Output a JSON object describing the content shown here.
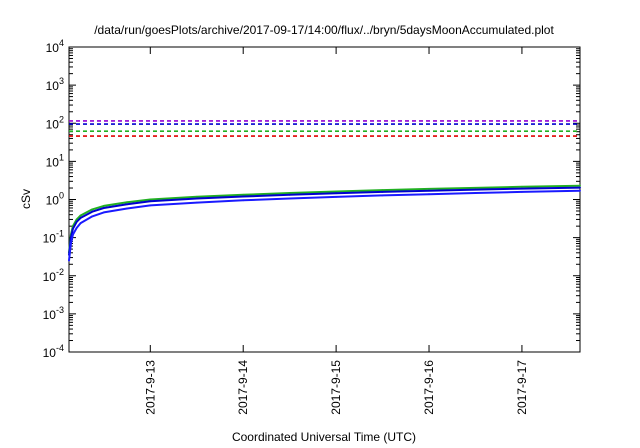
{
  "chart_data": {
    "type": "line",
    "title": "/data/run/goesPlots/archive/2017-09-17/14:00/flux/../bryn/5daysMoonAccumulated.plot",
    "xlabel": "Coordinated Universal Time (UTC)",
    "ylabel": "cSv",
    "x_scale": "time",
    "x_range": [
      "2017-09-12 03:00",
      "2017-09-17 15:00"
    ],
    "x_ticks": [
      "2017-9-13",
      "2017-9-14",
      "2017-9-15",
      "2017-9-16",
      "2017-9-17"
    ],
    "y_scale": "log",
    "ylim": [
      0.0001,
      10000
    ],
    "y_ticks": [
      {
        "mant": "10",
        "exp": "-4",
        "value": 0.0001
      },
      {
        "mant": "10",
        "exp": "-3",
        "value": 0.001
      },
      {
        "mant": "10",
        "exp": "-2",
        "value": 0.01
      },
      {
        "mant": "10",
        "exp": "-1",
        "value": 0.1
      },
      {
        "mant": "10",
        "exp": "0",
        "value": 1
      },
      {
        "mant": "10",
        "exp": "1",
        "value": 10
      },
      {
        "mant": "10",
        "exp": "2",
        "value": 100
      },
      {
        "mant": "10",
        "exp": "3",
        "value": 1000
      },
      {
        "mant": "10",
        "exp": "4",
        "value": 10000
      }
    ],
    "grid": false,
    "legend": "none",
    "reference_lines": [
      {
        "color": "#9400d3",
        "dashed": true,
        "y": 115
      },
      {
        "color": "#0000cd",
        "dashed": true,
        "y": 95
      },
      {
        "color": "#22b022",
        "dashed": true,
        "y": 62
      },
      {
        "color": "#e00000",
        "dashed": true,
        "y": 46
      }
    ],
    "series": [
      {
        "color": "#22b022",
        "x": [
          "2017-09-12 03:00",
          "2017-09-12 03:30",
          "2017-09-12 04:00",
          "2017-09-12 05:00",
          "2017-09-12 06:00",
          "2017-09-12 09:00",
          "2017-09-12 12:00",
          "2017-09-12 18:00",
          "2017-09-13 00:00",
          "2017-09-13 12:00",
          "2017-09-14 00:00",
          "2017-09-14 12:00",
          "2017-09-15 00:00",
          "2017-09-15 12:00",
          "2017-09-16 00:00",
          "2017-09-16 12:00",
          "2017-09-17 00:00",
          "2017-09-17 15:00"
        ],
        "values": [
          0.04,
          0.12,
          0.2,
          0.3,
          0.38,
          0.55,
          0.68,
          0.85,
          1.0,
          1.18,
          1.33,
          1.48,
          1.62,
          1.76,
          1.9,
          2.02,
          2.15,
          2.3
        ]
      },
      {
        "color": "#0000cd",
        "x": [
          "2017-09-12 03:00",
          "2017-09-12 03:30",
          "2017-09-12 04:00",
          "2017-09-12 05:00",
          "2017-09-12 06:00",
          "2017-09-12 09:00",
          "2017-09-12 12:00",
          "2017-09-12 18:00",
          "2017-09-13 00:00",
          "2017-09-13 12:00",
          "2017-09-14 00:00",
          "2017-09-14 12:00",
          "2017-09-15 00:00",
          "2017-09-15 12:00",
          "2017-09-16 00:00",
          "2017-09-16 12:00",
          "2017-09-17 00:00",
          "2017-09-17 15:00"
        ],
        "values": [
          0.035,
          0.1,
          0.17,
          0.26,
          0.33,
          0.48,
          0.6,
          0.75,
          0.9,
          1.06,
          1.2,
          1.33,
          1.46,
          1.58,
          1.7,
          1.82,
          1.93,
          2.05
        ]
      },
      {
        "color": "#1a1aff",
        "x": [
          "2017-09-12 03:00",
          "2017-09-12 03:30",
          "2017-09-12 04:00",
          "2017-09-12 05:00",
          "2017-09-12 06:00",
          "2017-09-12 09:00",
          "2017-09-12 12:00",
          "2017-09-12 18:00",
          "2017-09-13 00:00",
          "2017-09-13 12:00",
          "2017-09-14 00:00",
          "2017-09-14 12:00",
          "2017-09-15 00:00",
          "2017-09-15 12:00",
          "2017-09-16 00:00",
          "2017-09-16 12:00",
          "2017-09-17 00:00",
          "2017-09-17 15:00"
        ],
        "values": [
          0.025,
          0.07,
          0.12,
          0.18,
          0.24,
          0.36,
          0.46,
          0.58,
          0.7,
          0.83,
          0.95,
          1.06,
          1.17,
          1.28,
          1.38,
          1.48,
          1.58,
          1.7
        ]
      }
    ]
  }
}
